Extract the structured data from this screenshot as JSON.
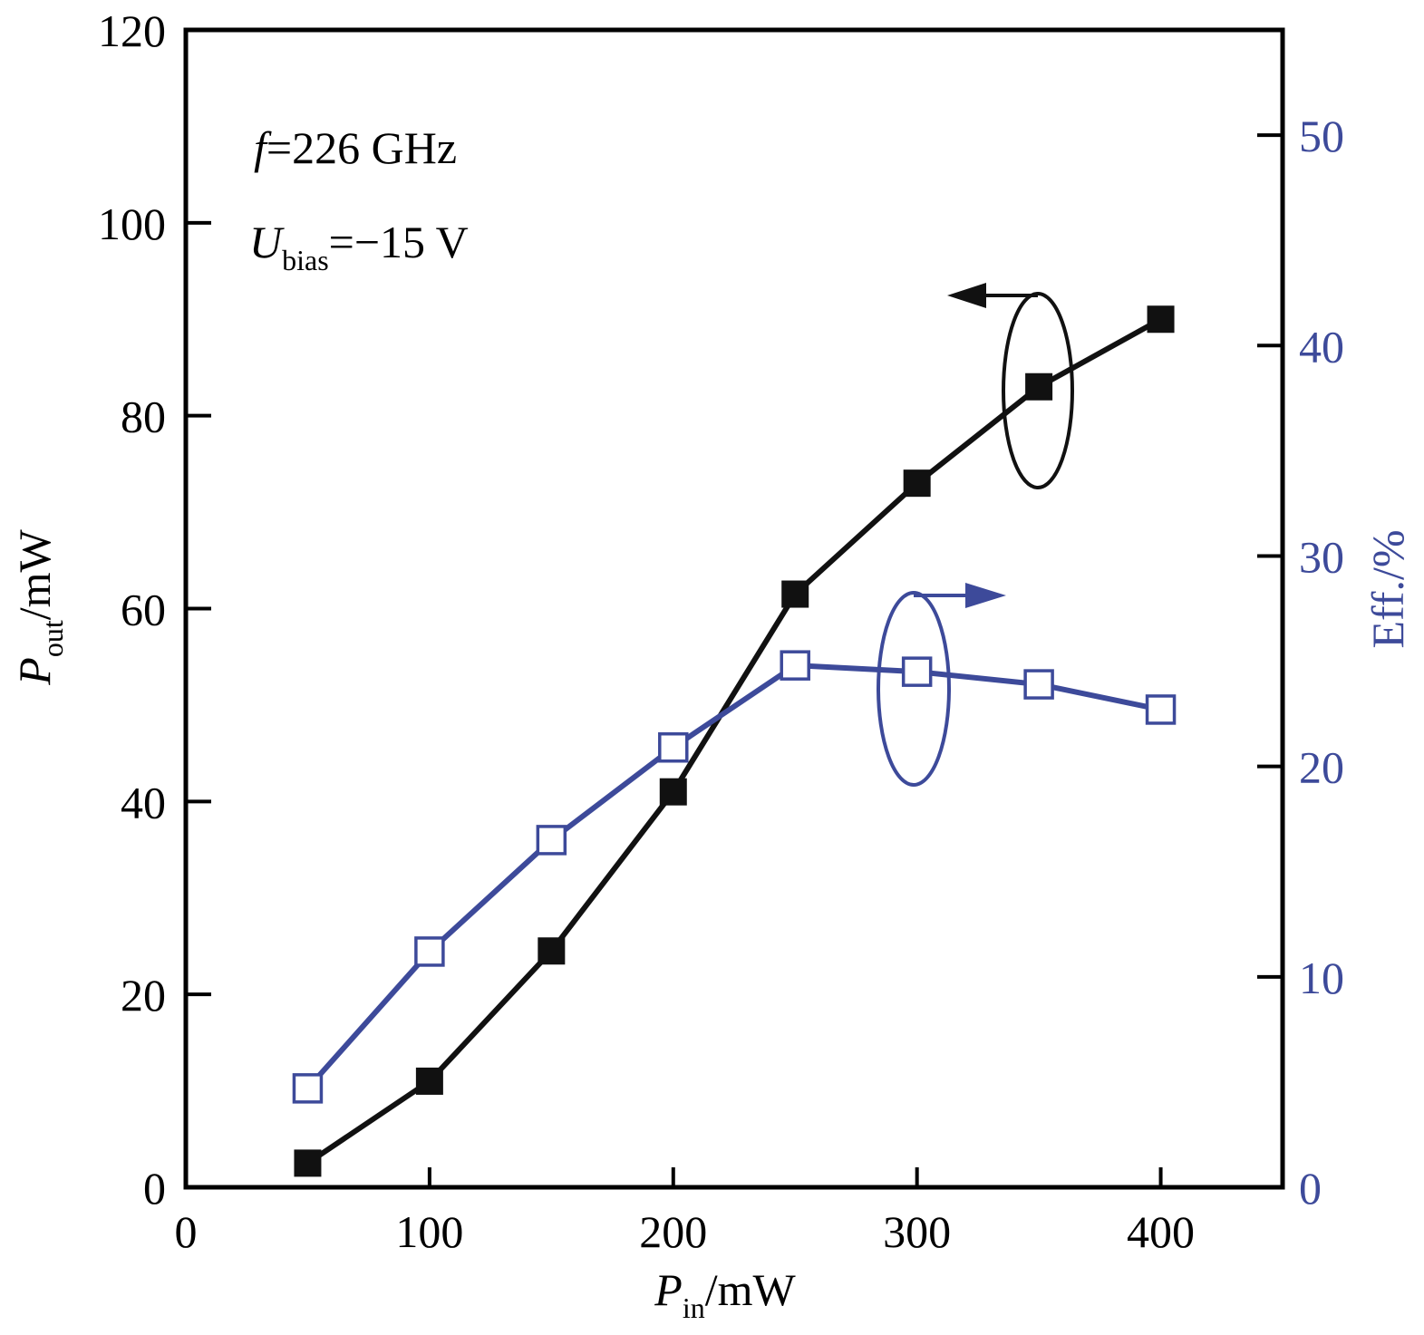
{
  "colors": {
    "axis": "#000000",
    "pout": "#111111",
    "eff": "#3d4a9a"
  },
  "annotations": {
    "freq_italic": "f",
    "freq_rest": "=226 GHz",
    "bias_main": "U",
    "bias_sub": "bias",
    "bias_rest": "=−15 V"
  },
  "chart_data": {
    "type": "line",
    "xlabel_main": "P",
    "xlabel_sub": "in",
    "xlabel_unit": "/mW",
    "ylabel_main": "P",
    "ylabel_sub": "out",
    "ylabel_unit": "/mW",
    "y2label": "Eff./%",
    "xlim": [
      0,
      450
    ],
    "ylim": [
      0,
      120
    ],
    "y2lim": [
      0,
      55
    ],
    "x_ticks": [
      0,
      100,
      200,
      300,
      400
    ],
    "y_ticks": [
      0,
      20,
      40,
      60,
      80,
      100,
      120
    ],
    "y2_ticks": [
      0,
      10,
      20,
      30,
      40,
      50
    ],
    "x": [
      50,
      100,
      150,
      200,
      250,
      300,
      350,
      400
    ],
    "series": [
      {
        "axis": "left",
        "marker": "filled-square",
        "values": [
          2.5,
          11,
          24.5,
          41,
          61.5,
          73,
          83,
          90
        ]
      },
      {
        "axis": "right",
        "marker": "open-square",
        "values": [
          4.7,
          11.2,
          16.5,
          20.9,
          24.8,
          24.5,
          23.9,
          22.7
        ]
      }
    ],
    "grid": false
  }
}
